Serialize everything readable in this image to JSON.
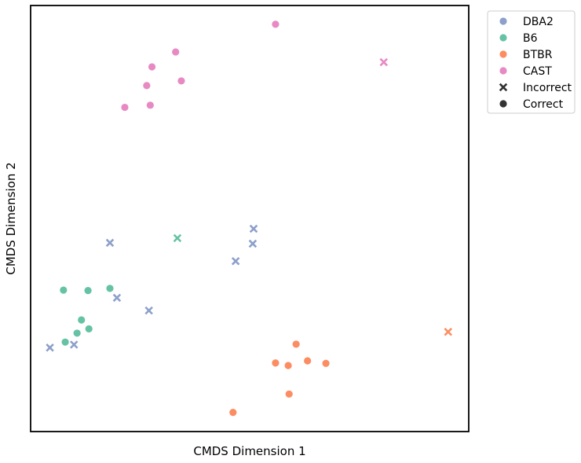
{
  "chart_data": {
    "type": "scatter",
    "xlabel": "CMDS Dimension 1",
    "ylabel": "CMDS Dimension 2",
    "xlim": [
      0,
      100
    ],
    "ylim": [
      0,
      100
    ],
    "grid": false,
    "ticks": false,
    "legend_position": "outside-top-right",
    "strain_legend": [
      {
        "name": "DBA2",
        "color": "#8da0cb"
      },
      {
        "name": "B6",
        "color": "#66c2a5"
      },
      {
        "name": "BTBR",
        "color": "#fc8d62"
      },
      {
        "name": "CAST",
        "color": "#e78ac3"
      }
    ],
    "marker_legend": [
      {
        "name": "Incorrect",
        "marker": "x"
      },
      {
        "name": "Correct",
        "marker": "o"
      }
    ],
    "points": [
      {
        "strain": "CAST",
        "correct": true,
        "x": 55.9,
        "y": 95.6
      },
      {
        "strain": "CAST",
        "correct": false,
        "x": 80.6,
        "y": 86.7
      },
      {
        "strain": "CAST",
        "correct": true,
        "x": 33.1,
        "y": 89.1
      },
      {
        "strain": "CAST",
        "correct": true,
        "x": 27.7,
        "y": 85.6
      },
      {
        "strain": "CAST",
        "correct": true,
        "x": 34.4,
        "y": 82.3
      },
      {
        "strain": "CAST",
        "correct": true,
        "x": 26.5,
        "y": 81.2
      },
      {
        "strain": "CAST",
        "correct": true,
        "x": 27.3,
        "y": 76.6
      },
      {
        "strain": "CAST",
        "correct": true,
        "x": 21.5,
        "y": 76.1
      },
      {
        "strain": "B6",
        "correct": false,
        "x": 33.5,
        "y": 45.4
      },
      {
        "strain": "DBA2",
        "correct": false,
        "x": 50.9,
        "y": 47.6
      },
      {
        "strain": "DBA2",
        "correct": false,
        "x": 18.1,
        "y": 44.3
      },
      {
        "strain": "DBA2",
        "correct": false,
        "x": 50.7,
        "y": 44.1
      },
      {
        "strain": "DBA2",
        "correct": false,
        "x": 46.8,
        "y": 40.0
      },
      {
        "strain": "B6",
        "correct": true,
        "x": 7.5,
        "y": 33.2
      },
      {
        "strain": "B6",
        "correct": true,
        "x": 13.1,
        "y": 33.1
      },
      {
        "strain": "B6",
        "correct": true,
        "x": 18.1,
        "y": 33.6
      },
      {
        "strain": "DBA2",
        "correct": false,
        "x": 19.7,
        "y": 31.4
      },
      {
        "strain": "DBA2",
        "correct": false,
        "x": 27.0,
        "y": 28.4
      },
      {
        "strain": "B6",
        "correct": true,
        "x": 11.6,
        "y": 26.2
      },
      {
        "strain": "B6",
        "correct": true,
        "x": 13.3,
        "y": 24.1
      },
      {
        "strain": "B6",
        "correct": true,
        "x": 10.6,
        "y": 23.1
      },
      {
        "strain": "B6",
        "correct": true,
        "x": 7.9,
        "y": 21.0
      },
      {
        "strain": "DBA2",
        "correct": false,
        "x": 9.9,
        "y": 20.4
      },
      {
        "strain": "DBA2",
        "correct": false,
        "x": 4.4,
        "y": 19.7
      },
      {
        "strain": "BTBR",
        "correct": false,
        "x": 95.3,
        "y": 23.4
      },
      {
        "strain": "BTBR",
        "correct": true,
        "x": 60.6,
        "y": 20.5
      },
      {
        "strain": "BTBR",
        "correct": true,
        "x": 63.2,
        "y": 16.6
      },
      {
        "strain": "BTBR",
        "correct": true,
        "x": 55.9,
        "y": 16.1
      },
      {
        "strain": "BTBR",
        "correct": true,
        "x": 67.4,
        "y": 16.0
      },
      {
        "strain": "BTBR",
        "correct": true,
        "x": 58.8,
        "y": 15.5
      },
      {
        "strain": "BTBR",
        "correct": true,
        "x": 59.0,
        "y": 8.8
      },
      {
        "strain": "BTBR",
        "correct": true,
        "x": 46.2,
        "y": 4.5
      }
    ]
  }
}
